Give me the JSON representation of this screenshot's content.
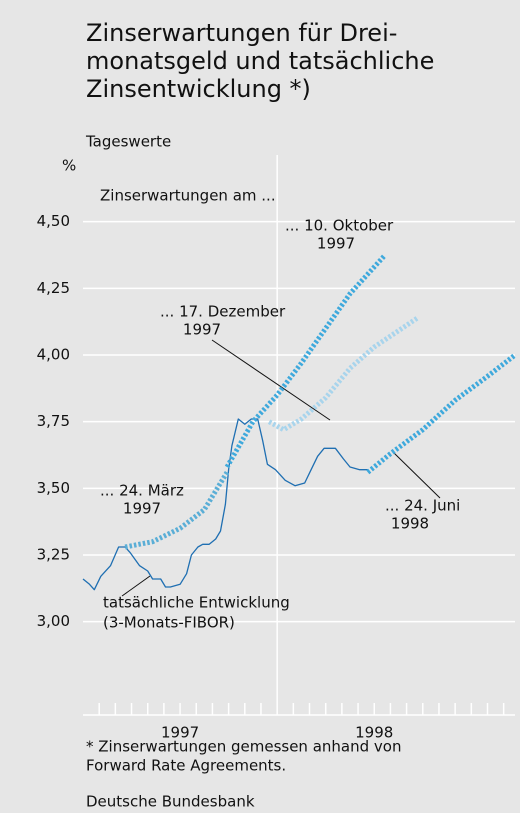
{
  "chart_data": {
    "type": "line",
    "title": [
      "Zinserwartungen für Drei-",
      "monatsgeld und tatsächliche",
      "Zinsentwicklung *)"
    ],
    "subtitle": "Tageswerte",
    "ylabel": "%",
    "xlim": [
      0,
      26.7
    ],
    "ylim": [
      2.65,
      4.75
    ],
    "yticks": [
      {
        "value": 3.0,
        "label": "3,00"
      },
      {
        "value": 3.25,
        "label": "3,25"
      },
      {
        "value": 3.5,
        "label": "3,50"
      },
      {
        "value": 3.75,
        "label": "3,75"
      },
      {
        "value": 4.0,
        "label": "4,00"
      },
      {
        "value": 4.25,
        "label": "4,25"
      },
      {
        "value": 4.5,
        "label": "4,50"
      }
    ],
    "xticks": [
      {
        "value": 6,
        "label": "1997"
      },
      {
        "value": 18,
        "label": "1998"
      }
    ],
    "xminor": [
      1,
      2,
      3,
      4,
      5,
      6,
      7,
      8,
      9,
      10,
      11,
      13,
      14,
      15,
      16,
      17,
      18,
      19,
      20,
      21,
      22,
      23,
      24,
      25,
      26
    ],
    "xmajor": [
      12
    ],
    "grid": true,
    "annotation": "Zinserwartungen am ...",
    "series": [
      {
        "label": [
          "tatsächliche Entwicklung",
          "(3-Monats-FIBOR)"
        ],
        "color": "#1f6fb2",
        "style": "solid",
        "x": [
          0,
          0.4,
          0.7,
          1.1,
          1.7,
          2.2,
          2.6,
          2.9,
          3.5,
          4.0,
          4.3,
          4.8,
          5.1,
          5.4,
          6.0,
          6.4,
          6.7,
          7.1,
          7.4,
          7.8,
          8.2,
          8.5,
          8.8,
          9.0,
          9.2,
          9.6,
          10.0,
          10.4,
          10.8,
          11.1,
          11.4,
          11.9,
          12.5,
          13.1,
          13.7,
          14.1,
          14.5,
          14.9,
          15.6,
          16.1,
          16.5,
          17.1,
          17.6
        ],
        "values": [
          3.16,
          3.14,
          3.12,
          3.17,
          3.21,
          3.28,
          3.28,
          3.26,
          3.21,
          3.19,
          3.16,
          3.16,
          3.13,
          3.13,
          3.14,
          3.18,
          3.25,
          3.28,
          3.29,
          3.29,
          3.31,
          3.34,
          3.44,
          3.57,
          3.66,
          3.76,
          3.74,
          3.76,
          3.76,
          3.68,
          3.59,
          3.57,
          3.53,
          3.51,
          3.52,
          3.57,
          3.62,
          3.65,
          3.65,
          3.61,
          3.58,
          3.57,
          3.57
        ]
      },
      {
        "label": [
          "... 24. März",
          "1997"
        ],
        "color": "#5aaed6",
        "style": "dashed",
        "x": [
          2.6,
          4.3,
          6.0,
          7.5,
          8.9
        ],
        "values": [
          3.28,
          3.3,
          3.35,
          3.42,
          3.56
        ]
      },
      {
        "label": [
          "... 10. Oktober",
          "1997"
        ],
        "color": "#3fa9dc",
        "style": "dashed",
        "x": [
          8.9,
          10.5,
          12.0,
          13.5,
          15.0,
          16.5,
          18.6
        ],
        "values": [
          3.58,
          3.75,
          3.85,
          3.97,
          4.1,
          4.23,
          4.37
        ]
      },
      {
        "label": [
          "... 17. Dezember",
          "1997"
        ],
        "color": "#a8d4ec",
        "style": "dashed",
        "x": [
          11.5,
          12.4,
          13.5,
          15.0,
          16.5,
          18.0,
          20.7
        ],
        "values": [
          3.75,
          3.72,
          3.76,
          3.84,
          3.95,
          4.03,
          4.14
        ]
      },
      {
        "label": [
          "... 24. Juni",
          "1998"
        ],
        "color": "#3fa9dc",
        "style": "dashed",
        "x": [
          17.6,
          19.0,
          21.0,
          23.0,
          25.0,
          26.7
        ],
        "values": [
          3.56,
          3.63,
          3.72,
          3.83,
          3.92,
          4.0
        ]
      }
    ],
    "footnote": [
      "* Zinserwartungen gemessen anhand von",
      "Forward Rate Agreements."
    ],
    "source": "Deutsche Bundesbank"
  }
}
